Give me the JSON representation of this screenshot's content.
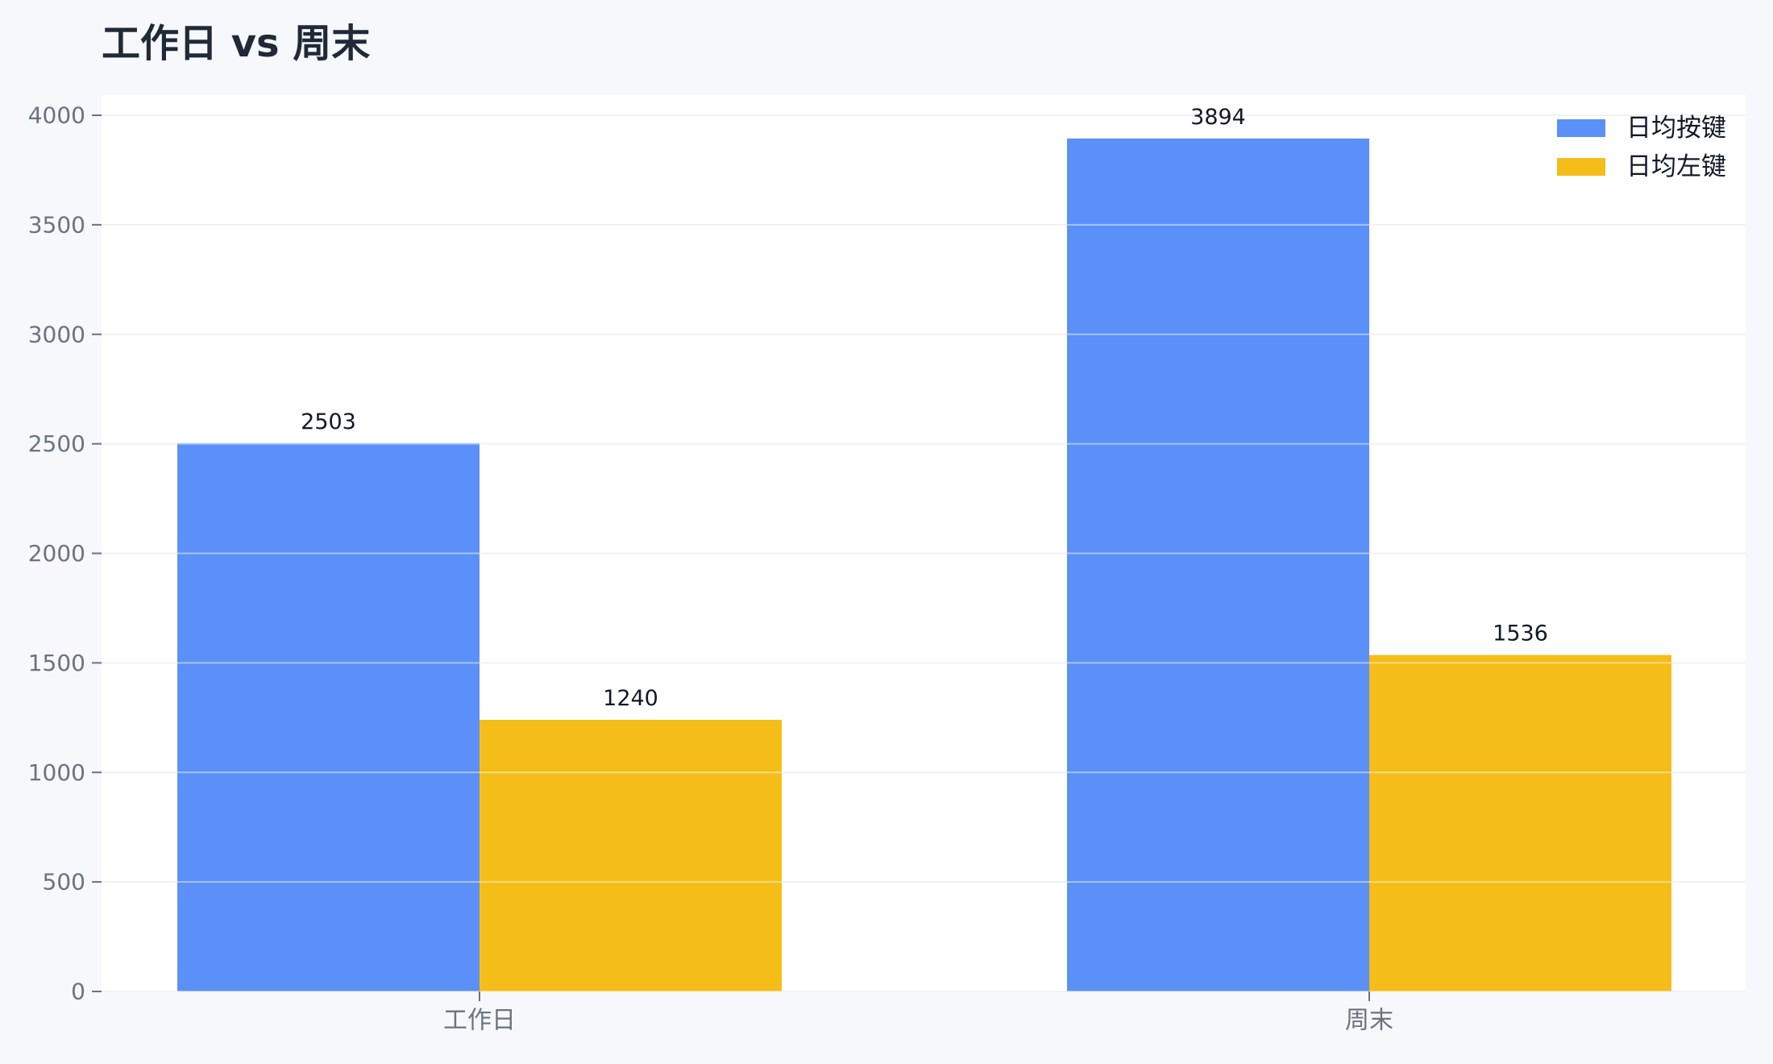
{
  "chart_data": {
    "type": "bar",
    "title": "工作日 vs 周末",
    "xlabel": "",
    "ylabel": "",
    "categories": [
      "工作日",
      "周末"
    ],
    "series": [
      {
        "name": "日均按键",
        "values": [
          2503,
          3894
        ],
        "color": "#5b90f8"
      },
      {
        "name": "日均左键",
        "values": [
          1240,
          1536
        ],
        "color": "#f4bd18"
      }
    ],
    "ylim": [
      0,
      4000
    ],
    "yticks": [
      0,
      500,
      1000,
      1500,
      2000,
      2500,
      3000,
      3500,
      4000
    ],
    "grid": true,
    "legend_position": "top-right",
    "data_labels": true
  }
}
